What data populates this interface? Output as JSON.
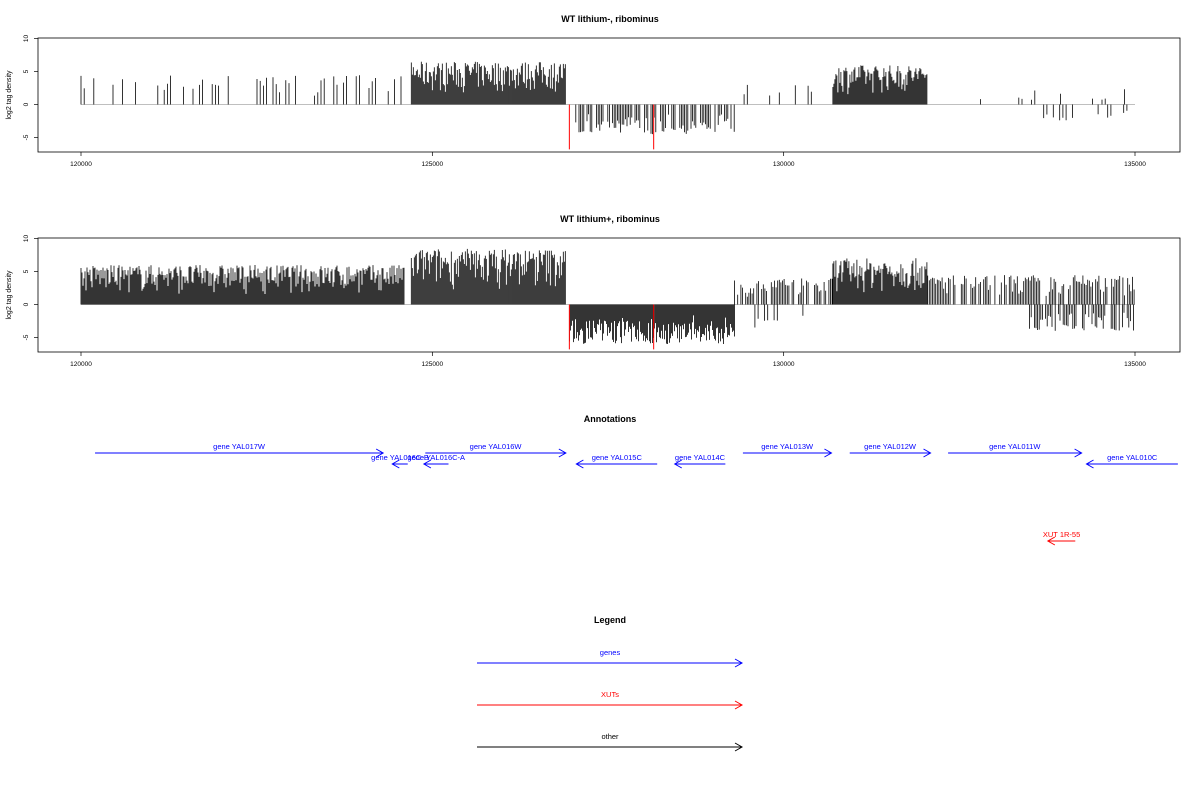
{
  "colors": {
    "signal": "#000000",
    "xut_signal": "#ff0000",
    "gene": "#0000ff",
    "xut": "#ff0000",
    "other": "#000000",
    "baseline": "#aaaaaa"
  },
  "chart_data": [
    {
      "type": "bar",
      "title": "WT lithium-, ribominus",
      "ylabel": "log2 tag density",
      "xlim": [
        119400,
        135600
      ],
      "ylim": [
        -7.2,
        10
      ],
      "xticks": [
        "120000",
        "125000",
        "130000",
        "135000"
      ],
      "yticks": [
        "10",
        "5",
        "0",
        "-5"
      ],
      "grid": false,
      "regions": [
        {
          "start": 120000,
          "end": 124600,
          "max": 4.5,
          "density": 0.35,
          "sign": 1
        },
        {
          "start": 124700,
          "end": 126900,
          "max": 6.5,
          "density": 1.0,
          "sign": 1
        },
        {
          "start": 126950,
          "end": 129300,
          "max": -4.5,
          "density": 0.6,
          "sign": -1
        },
        {
          "start": 129300,
          "end": 130700,
          "max": 3.0,
          "density": 0.15,
          "sign": 1
        },
        {
          "start": 130700,
          "end": 132050,
          "max": 6.0,
          "density": 1.0,
          "sign": 1
        },
        {
          "start": 132800,
          "end": 135000,
          "max": 2.5,
          "density": 0.15,
          "sign": 1
        },
        {
          "start": 133700,
          "end": 135000,
          "max": -2.5,
          "density": 0.25,
          "sign": -1
        }
      ],
      "highlight_bars": [
        {
          "x": 126950,
          "value": -6.8
        },
        {
          "x": 128150,
          "value": -6.8
        }
      ]
    },
    {
      "type": "bar",
      "title": "WT lithium+, ribominus",
      "ylabel": "log2 tag density",
      "xlim": [
        119400,
        135600
      ],
      "ylim": [
        -7.2,
        10
      ],
      "xticks": [
        "120000",
        "125000",
        "130000",
        "135000"
      ],
      "yticks": [
        "10",
        "5",
        "0",
        "-5"
      ],
      "grid": false,
      "regions": [
        {
          "start": 120000,
          "end": 124600,
          "max": 6.0,
          "density": 1.0,
          "sign": 1
        },
        {
          "start": 124700,
          "end": 126900,
          "max": 8.5,
          "density": 1.0,
          "sign": 1
        },
        {
          "start": 126950,
          "end": 129300,
          "max": -6.0,
          "density": 1.0,
          "sign": -1
        },
        {
          "start": 129300,
          "end": 130700,
          "max": 4.0,
          "density": 0.7,
          "sign": 1
        },
        {
          "start": 129500,
          "end": 130400,
          "max": -3.5,
          "density": 0.4,
          "sign": -1
        },
        {
          "start": 130700,
          "end": 132050,
          "max": 7.0,
          "density": 1.0,
          "sign": 1
        },
        {
          "start": 132050,
          "end": 135000,
          "max": 4.5,
          "density": 0.7,
          "sign": 1
        },
        {
          "start": 133500,
          "end": 135000,
          "max": -4.0,
          "density": 0.6,
          "sign": -1
        }
      ],
      "highlight_bars": [
        {
          "x": 126950,
          "value": -6.8
        },
        {
          "x": 128150,
          "value": -6.8
        }
      ]
    },
    {
      "type": "annotation-track",
      "title": "Annotations",
      "xlim": [
        119400,
        135600
      ],
      "features": [
        {
          "label": "gene YAL017W",
          "start": 120200,
          "end": 124300,
          "strand": "+",
          "kind": "gene",
          "row": 0
        },
        {
          "label": "gene YAL016C-B",
          "start": 124430,
          "end": 124650,
          "strand": "-",
          "kind": "gene",
          "row": 1
        },
        {
          "label": "gene YAL016C-A",
          "start": 124880,
          "end": 125230,
          "strand": "-",
          "kind": "gene",
          "row": 1
        },
        {
          "label": "gene YAL016W",
          "start": 124900,
          "end": 126900,
          "strand": "+",
          "kind": "gene",
          "row": 0
        },
        {
          "label": "gene YAL015C",
          "start": 127050,
          "end": 128200,
          "strand": "-",
          "kind": "gene",
          "row": 1
        },
        {
          "label": "gene YAL014C",
          "start": 128450,
          "end": 129170,
          "strand": "-",
          "kind": "gene",
          "row": 1
        },
        {
          "label": "gene YAL013W",
          "start": 129420,
          "end": 130680,
          "strand": "+",
          "kind": "gene",
          "row": 0
        },
        {
          "label": "gene YAL012W",
          "start": 130940,
          "end": 132090,
          "strand": "+",
          "kind": "gene",
          "row": 0
        },
        {
          "label": "gene YAL011W",
          "start": 132340,
          "end": 134240,
          "strand": "+",
          "kind": "gene",
          "row": 0
        },
        {
          "label": "gene YAL010C",
          "start": 134310,
          "end": 135610,
          "strand": "-",
          "kind": "gene",
          "row": 1
        },
        {
          "label": "XUT 1R-55",
          "start": 133760,
          "end": 134150,
          "strand": "-",
          "kind": "xut",
          "row": 8
        }
      ]
    },
    {
      "type": "legend",
      "title": "Legend",
      "items": [
        {
          "label": "genes",
          "kind": "gene"
        },
        {
          "label": "XUTs",
          "kind": "xut"
        },
        {
          "label": "other",
          "kind": "other"
        }
      ]
    }
  ]
}
